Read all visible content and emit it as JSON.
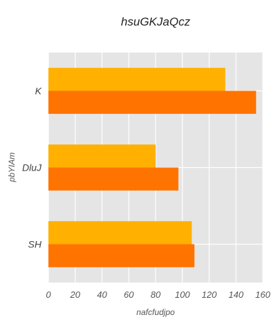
{
  "chart_data": {
    "type": "bar",
    "orientation": "horizontal",
    "title": "hsuGKJaQcz",
    "xlabel": "nafcfudjpo",
    "ylabel": "pbYIAm",
    "categories": [
      "K",
      "DluJ",
      "SH"
    ],
    "series": [
      {
        "color": "#ffb000",
        "values": [
          132,
          80,
          107
        ]
      },
      {
        "color": "#ff7300",
        "values": [
          155,
          97,
          109
        ]
      }
    ],
    "xlim": [
      0,
      160
    ],
    "xticks": [
      0,
      20,
      40,
      60,
      80,
      100,
      120,
      140,
      160
    ],
    "grid": true,
    "legend": "none"
  }
}
